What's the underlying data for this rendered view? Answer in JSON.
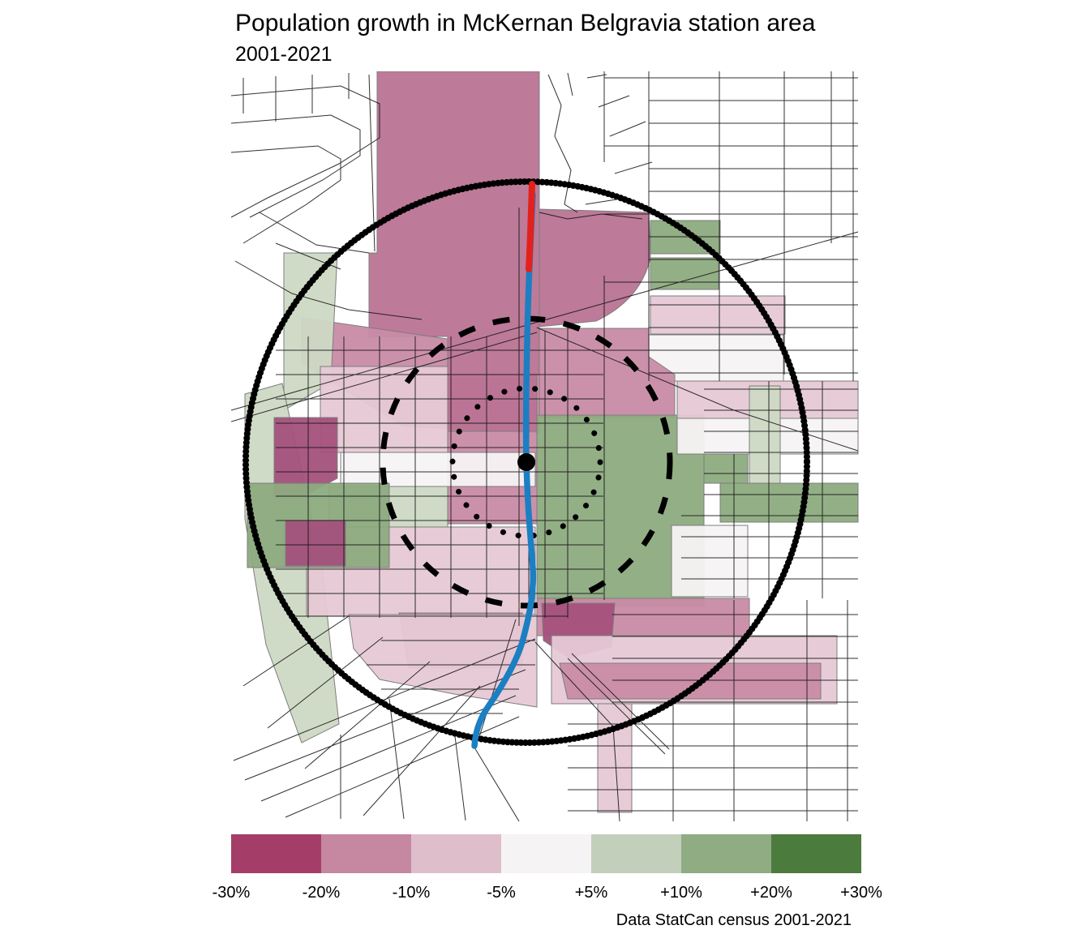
{
  "title": "Population growth in McKernan Belgravia station area",
  "subtitle": "2001-2021",
  "caption": "Data StatCan census 2001-2021",
  "legend": {
    "labels": [
      "-30%",
      "-20%",
      "-10%",
      "-5%",
      "+5%",
      "+10%",
      "+20%",
      "+30%"
    ],
    "colors": [
      "#a43e69",
      "#c687a0",
      "#dfbecb",
      "#f5f3f4",
      "#c2cfba",
      "#8fac82",
      "#4c7b3e"
    ]
  },
  "map": {
    "region_colors": {
      "darkest_magenta": "#a4517c",
      "dark_magenta": "#b97394",
      "medium_pink": "#c98ba5",
      "light_pink": "#e6c9d5",
      "near_white": "#f6f3f4",
      "light_green": "#cdd9c4",
      "medium_green": "#8dab80"
    },
    "line_colors": {
      "streets": "#141414",
      "rings": "#000000",
      "lrt_existing": "#1b7fc2",
      "lrt_extension": "#e3211c"
    }
  }
}
